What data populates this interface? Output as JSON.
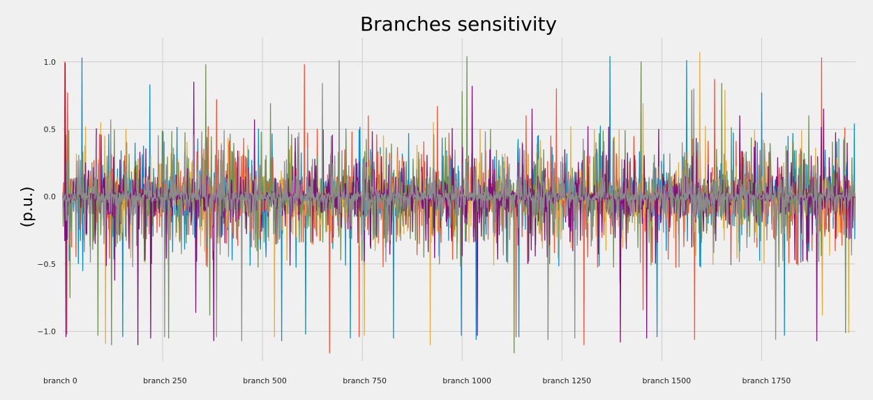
{
  "chart_data": {
    "type": "line",
    "title": "Branches sensitivity",
    "ylabel": "(p.u.)",
    "xlabel": "",
    "xlim": [
      0,
      1985
    ],
    "ylim": [
      -1.22,
      1.18
    ],
    "x_ticks": [
      0,
      250,
      500,
      750,
      1000,
      1250,
      1500,
      1750
    ],
    "x_tick_labels": [
      "branch 0",
      "branch 250",
      "branch 500",
      "branch 750",
      "branch 1000",
      "branch 1250",
      "branch 1500",
      "branch 1750"
    ],
    "y_ticks": [
      -1.0,
      -0.5,
      0.0,
      0.5,
      1.0
    ],
    "y_tick_labels": [
      "−1.0",
      "−0.5",
      "0.0",
      "0.5",
      "1.0"
    ],
    "grid": true,
    "legend": "none",
    "n_branches": 1985,
    "series": [
      {
        "color": "#008fd5",
        "seed": 11,
        "spikes": [
          [
            48,
            1.03
          ],
          [
            50,
            -0.55
          ],
          [
            8,
            -1.02
          ],
          [
            150,
            -1.04
          ],
          [
            218,
            0.83
          ],
          [
            548,
            -1.07
          ],
          [
            608,
            -1.02
          ],
          [
            720,
            -1.05
          ],
          [
            828,
            -1.05
          ],
          [
            998,
            -1.03
          ],
          [
            1035,
            -1.06
          ],
          [
            1142,
            -1.04
          ],
          [
            1370,
            1.04
          ],
          [
            1395,
            -0.64
          ],
          [
            1488,
            -1.04
          ],
          [
            1562,
            1.01
          ],
          [
            1750,
            0.77
          ],
          [
            1807,
            -1.03
          ],
          [
            1982,
            0.54
          ]
        ]
      },
      {
        "color": "#fc4f30",
        "seed": 23,
        "spikes": [
          [
            5,
            1.0
          ],
          [
            10,
            -1.02
          ],
          [
            12,
            0.77
          ],
          [
            385,
            0.72
          ],
          [
            605,
            0.98
          ],
          [
            668,
            -1.16
          ],
          [
            742,
            -1.04
          ],
          [
            765,
            0.6
          ],
          [
            938,
            0.67
          ],
          [
            1135,
            -1.04
          ],
          [
            1160,
            0.6
          ],
          [
            1236,
            0.8
          ],
          [
            1305,
            -1.1
          ],
          [
            1453,
            -0.84
          ],
          [
            1582,
            -1.06
          ],
          [
            1632,
            0.87
          ],
          [
            1900,
            1.03
          ],
          [
            1958,
            0.51
          ]
        ]
      },
      {
        "color": "#e5ae38",
        "seed": 37,
        "spikes": [
          [
            95,
            0.55
          ],
          [
            107,
            -1.09
          ],
          [
            158,
            0.5
          ],
          [
            530,
            -1.04
          ],
          [
            755,
            -1.03
          ],
          [
            920,
            -1.1
          ],
          [
            928,
            0.55
          ],
          [
            1045,
            0.5
          ],
          [
            1272,
            0.52
          ],
          [
            1453,
            0.69
          ],
          [
            1595,
            1.07
          ],
          [
            1658,
            0.79
          ],
          [
            1902,
            -0.88
          ],
          [
            1968,
            -1.01
          ]
        ]
      },
      {
        "color": "#6d904f",
        "seed": 41,
        "spikes": [
          [
            15,
            0.49
          ],
          [
            18,
            -0.75
          ],
          [
            88,
            -1.03
          ],
          [
            122,
            -1.1
          ],
          [
            265,
            -1.05
          ],
          [
            358,
            0.98
          ],
          [
            368,
            -0.88
          ],
          [
            520,
            0.69
          ],
          [
            565,
            0.52
          ],
          [
            1000,
            0.78
          ],
          [
            1012,
            1.04
          ],
          [
            1130,
            -1.16
          ],
          [
            1215,
            -1.06
          ],
          [
            1448,
            1.0
          ],
          [
            1575,
            0.79
          ],
          [
            1650,
            0.84
          ],
          [
            1868,
            0.6
          ],
          [
            1960,
            -1.01
          ]
        ]
      },
      {
        "color": "#810f7c",
        "seed": 53,
        "spikes": [
          [
            6,
            0.99
          ],
          [
            8,
            -1.04
          ],
          [
            130,
            -0.62
          ],
          [
            188,
            -1.1
          ],
          [
            220,
            -1.05
          ],
          [
            328,
            0.85
          ],
          [
            333,
            -0.86
          ],
          [
            378,
            -1.07
          ],
          [
            480,
            0.57
          ],
          [
            1025,
            0.82
          ],
          [
            1038,
            -1.03
          ],
          [
            1175,
            0.65
          ],
          [
            1315,
            0.52
          ],
          [
            1396,
            -1.08
          ],
          [
            1462,
            -1.05
          ],
          [
            1695,
            0.6
          ],
          [
            1888,
            -1.07
          ],
          [
            1905,
            0.65
          ]
        ]
      },
      {
        "color": "#8b8b8b",
        "seed": 67,
        "spikes": [
          [
            120,
            0.57
          ],
          [
            175,
            -0.52
          ],
          [
            255,
            -1.04
          ],
          [
            385,
            -1.04
          ],
          [
            448,
            -1.07
          ],
          [
            650,
            0.84
          ],
          [
            692,
            1.01
          ],
          [
            1215,
            -1.06
          ],
          [
            1282,
            -1.05
          ],
          [
            1335,
            0.4
          ],
          [
            1580,
            0.8
          ],
          [
            1785,
            -1.06
          ],
          [
            1955,
            0.42
          ]
        ]
      }
    ]
  }
}
